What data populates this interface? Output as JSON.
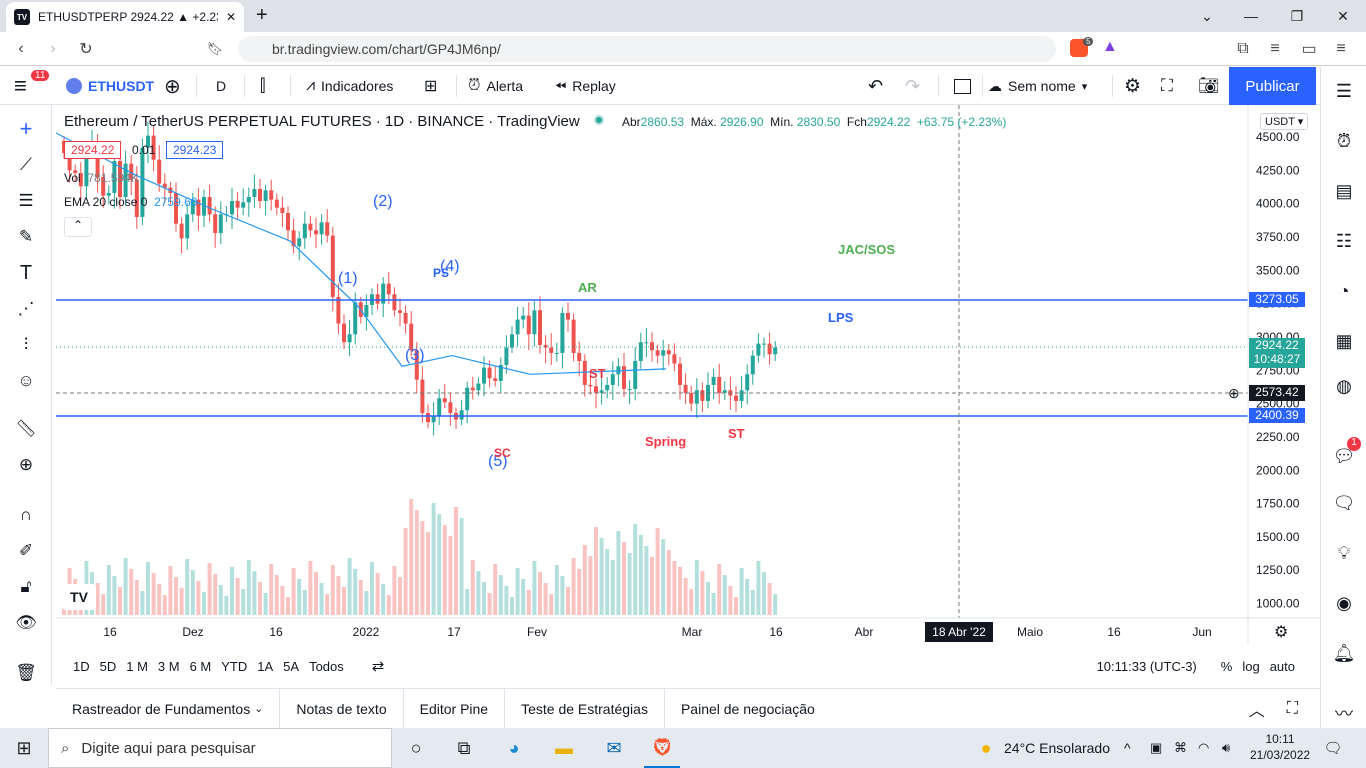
{
  "browser": {
    "tab_title": "ETHUSDTPERP 2924.22 ▲ +2.23%",
    "url": "br.tradingview.com/chart/GP4JM6np/",
    "brave_badge": "5"
  },
  "toolbar": {
    "symbol": "ETHUSDT",
    "interval": "D",
    "indicators": "Indicadores",
    "alert": "Alerta",
    "replay": "Replay",
    "layout_name": "Sem nome",
    "publish": "Publicar",
    "menu_badge": "11"
  },
  "legend": {
    "title": "Ethereum / TetherUS PERPETUAL FUTURES · 1D · BINANCE · TradingView",
    "o_label": "Abr",
    "o": "2860.53",
    "h_label": "Máx.",
    "h": "2926.90",
    "l_label": "Mín.",
    "l": "2830.50",
    "c_label": "Fch",
    "c": "2924.22",
    "chg": "+63.75 (+2.23%)",
    "sell": "2924.22",
    "spread": "0.01",
    "buy": "2924.23",
    "vol_label": "Vol",
    "vol": "781.594K",
    "ema_label": "EMA 20 close 0",
    "ema": "2759.60"
  },
  "axis": {
    "currency": "USDT",
    "price_ticks": [
      "4500.00",
      "4250.00",
      "4000.00",
      "3750.00",
      "3500.00",
      "3250.00",
      "3000.00",
      "2750.00",
      "2500.00",
      "2250.00",
      "2000.00",
      "1750.00",
      "1500.00",
      "1250.00",
      "1000.00"
    ],
    "time_ticks": [
      "16",
      "Dez",
      "16",
      "2022",
      "17",
      "Fev",
      "Mar",
      "16",
      "Abr",
      "Maio",
      "16",
      "Jun"
    ],
    "crosshair_date": "18 Abr '22",
    "level_hi": "3273.05",
    "level_lo": "2400.39",
    "last_price": "2924.22",
    "countdown": "10:48:27",
    "crosshair_price": "2573.42"
  },
  "annotations": {
    "w1": "(1)",
    "w2": "(2)",
    "w3": "(3)",
    "w4": "(4)",
    "w5": "(5)",
    "ps": "PS",
    "sc": "SC",
    "ar": "AR",
    "st1": "ST",
    "spring": "Spring",
    "st2": "ST",
    "lps": "LPS",
    "jac": "JAC/SOS"
  },
  "ranges": [
    "1D",
    "5D",
    "1 M",
    "3 M",
    "6 M",
    "YTD",
    "1A",
    "5A",
    "Todos"
  ],
  "status": {
    "time": "10:11:33 (UTC-3)",
    "pct": "%",
    "log": "log",
    "auto": "auto"
  },
  "panels": [
    "Rastreador de Fundamentos",
    "Notas de texto",
    "Editor Pine",
    "Teste de Estratégias",
    "Painel de negociação"
  ],
  "taskbar": {
    "search_placeholder": "Digite aqui para pesquisar",
    "weather": "24°C  Ensolarado",
    "clock_time": "10:11",
    "clock_date": "21/03/2022"
  },
  "right_badge": "1",
  "chart_data": {
    "type": "candlestick",
    "symbol": "ETHUSDTPERP",
    "ylim": [
      900,
      4650
    ],
    "levels": [
      3273.05,
      2400.39
    ],
    "closes": [
      4380,
      4250,
      4230,
      4130,
      4400,
      4470,
      4200,
      4060,
      4080,
      4320,
      4050,
      4300,
      4180,
      3900,
      4420,
      4510,
      4330,
      4150,
      4120,
      4080,
      3850,
      3740,
      3920,
      4030,
      3910,
      4050,
      3920,
      3780,
      3920,
      3920,
      4020,
      3970,
      4010,
      4050,
      4110,
      4020,
      4100,
      4030,
      3970,
      3930,
      3800,
      3680,
      3740,
      3850,
      3800,
      3770,
      3860,
      3760,
      3300,
      3100,
      2960,
      3020,
      3260,
      3150,
      3240,
      3320,
      3250,
      3400,
      3320,
      3200,
      3180,
      3100,
      2900,
      2680,
      2430,
      2360,
      2410,
      2540,
      2510,
      2430,
      2380,
      2450,
      2620,
      2600,
      2650,
      2770,
      2690,
      2670,
      2790,
      2920,
      3020,
      3130,
      3160,
      3020,
      3200,
      2940,
      2920,
      2880,
      2880,
      3180,
      3130,
      2880,
      2820,
      2640,
      2630,
      2580,
      2600,
      2640,
      2720,
      2780,
      2610,
      2610,
      2820,
      2960,
      2960,
      2900,
      2860,
      2900,
      2870,
      2800,
      2640,
      2580,
      2500,
      2600,
      2520,
      2640,
      2700,
      2580,
      2600,
      2560,
      2520,
      2600,
      2720,
      2860,
      2950,
      2950,
      2870,
      2920
    ],
    "ema20_points": [
      [
        "dec-01",
        4530
      ],
      [
        "dec-15",
        4220
      ],
      [
        "dec-29",
        3960
      ],
      [
        "jan-12",
        3720
      ],
      [
        "jan-24",
        3230
      ],
      [
        "feb-01",
        2780
      ],
      [
        "feb-10",
        2860
      ],
      [
        "feb-24",
        2720
      ],
      [
        "mar-21",
        2760
      ]
    ]
  }
}
